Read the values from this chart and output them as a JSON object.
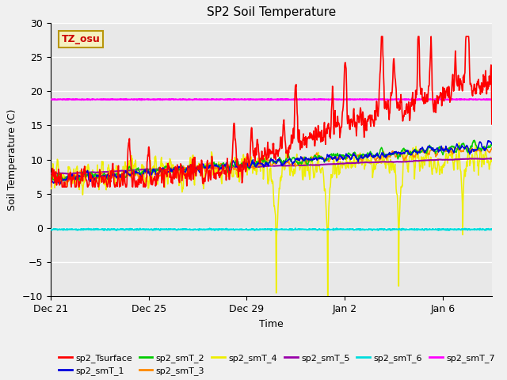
{
  "title": "SP2 Soil Temperature",
  "ylabel": "Soil Temperature (C)",
  "xlabel": "Time",
  "ylim": [
    -10,
    30
  ],
  "xlim": [
    0,
    18
  ],
  "plot_bg_color": "#e8e8e8",
  "fig_bg_color": "#f0f0f0",
  "annotation_text": "TZ_osu",
  "annotation_bg": "#f5f0c0",
  "annotation_border": "#b8960a",
  "annotation_text_color": "#cc0000",
  "series": {
    "sp2_Tsurface": {
      "color": "#ff0000",
      "lw": 1.2,
      "zorder": 5
    },
    "sp2_smT_1": {
      "color": "#0000dd",
      "lw": 1.1,
      "zorder": 4
    },
    "sp2_smT_2": {
      "color": "#00cc00",
      "lw": 1.1,
      "zorder": 4
    },
    "sp2_smT_3": {
      "color": "#ff8800",
      "lw": 1.1,
      "zorder": 4
    },
    "sp2_smT_4": {
      "color": "#eeee00",
      "lw": 1.1,
      "zorder": 3
    },
    "sp2_smT_5": {
      "color": "#9900aa",
      "lw": 1.5,
      "zorder": 4
    },
    "sp2_smT_6": {
      "color": "#00dddd",
      "lw": 1.5,
      "zorder": 4
    },
    "sp2_smT_7": {
      "color": "#ff00ff",
      "lw": 1.5,
      "zorder": 4
    }
  },
  "x_tick_labels": [
    "Dec 21",
    "Dec 25",
    "Dec 29",
    "Jan 2",
    "Jan 6"
  ],
  "x_tick_positions": [
    0,
    4,
    8,
    12,
    16
  ],
  "grid_color": "#ffffff",
  "grid_lw": 1.0,
  "legend_fontsize": 8,
  "title_fontsize": 11,
  "axis_fontsize": 9,
  "smT7_level": 18.8,
  "smT6_level": -0.2,
  "n_points": 1200
}
